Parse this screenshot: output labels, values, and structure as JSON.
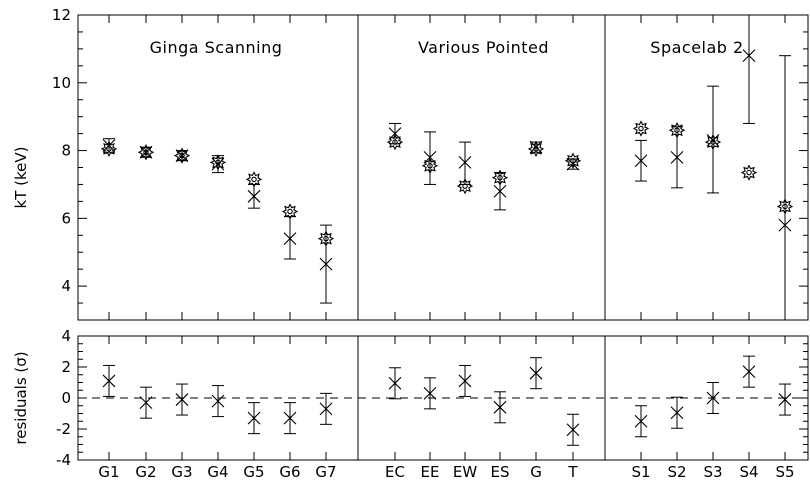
{
  "chart_data": {
    "type": "scatter",
    "ylabel_top": "kT (keV)",
    "ylabel_bottom": "residuals (σ)",
    "panels": [
      "Ginga Scanning",
      "Various Pointed",
      "Spacelab 2"
    ],
    "top_ylim": [
      3,
      12
    ],
    "top_yticks": [
      4,
      6,
      8,
      10,
      12
    ],
    "bottom_ylim": [
      -4,
      4
    ],
    "bottom_yticks": [
      -4,
      -2,
      0,
      2,
      4
    ],
    "groups": [
      {
        "categories": [
          "G1",
          "G2",
          "G3",
          "G4",
          "G5",
          "G6",
          "G7"
        ],
        "kT": [
          8.15,
          7.95,
          7.85,
          7.6,
          6.65,
          5.4,
          4.65
        ],
        "kT_low": [
          7.95,
          7.8,
          7.7,
          7.35,
          6.3,
          4.8,
          3.5
        ],
        "kT_high": [
          8.35,
          8.1,
          8.0,
          7.85,
          7.0,
          6.05,
          5.8
        ],
        "model": [
          8.05,
          7.95,
          7.85,
          7.65,
          7.15,
          6.2,
          5.4
        ],
        "residual": [
          1.1,
          -0.3,
          -0.1,
          -0.2,
          -1.3,
          -1.3,
          -0.7
        ],
        "residual_low": [
          0.1,
          -1.3,
          -1.1,
          -1.2,
          -2.3,
          -2.3,
          -1.7
        ],
        "residual_high": [
          2.1,
          0.7,
          0.9,
          0.8,
          -0.3,
          -0.3,
          0.3
        ]
      },
      {
        "categories": [
          "EC",
          "EE",
          "EW",
          "ES",
          "G",
          "T"
        ],
        "kT": [
          8.5,
          7.8,
          7.65,
          6.8,
          8.1,
          7.6
        ],
        "kT_low": [
          8.2,
          7.0,
          7.0,
          6.25,
          7.95,
          7.45
        ],
        "kT_high": [
          8.8,
          8.55,
          8.25,
          7.35,
          8.25,
          7.75
        ],
        "model": [
          8.25,
          7.55,
          6.95,
          7.2,
          8.05,
          7.7
        ],
        "residual": [
          0.95,
          0.3,
          1.1,
          -0.6,
          1.6,
          -2.05
        ],
        "residual_low": [
          -0.05,
          -0.7,
          0.1,
          -1.6,
          0.6,
          -3.05
        ],
        "residual_high": [
          1.95,
          1.3,
          2.1,
          0.4,
          2.6,
          -1.05
        ]
      },
      {
        "categories": [
          "S1",
          "S2",
          "S3",
          "S4",
          "S5"
        ],
        "kT": [
          7.7,
          7.8,
          8.3,
          10.8,
          5.8
        ],
        "kT_low": [
          7.1,
          6.9,
          6.75,
          8.8,
          0
        ],
        "kT_high": [
          8.3,
          8.7,
          9.9,
          12.8,
          10.8
        ],
        "model": [
          8.65,
          8.6,
          8.25,
          7.35,
          6.35
        ],
        "residual": [
          -1.5,
          -0.95,
          0.0,
          1.7,
          -0.1
        ],
        "residual_low": [
          -2.5,
          -1.95,
          -1.0,
          0.7,
          -1.1
        ],
        "residual_high": [
          -0.5,
          0.05,
          1.0,
          2.7,
          0.9
        ]
      }
    ]
  }
}
